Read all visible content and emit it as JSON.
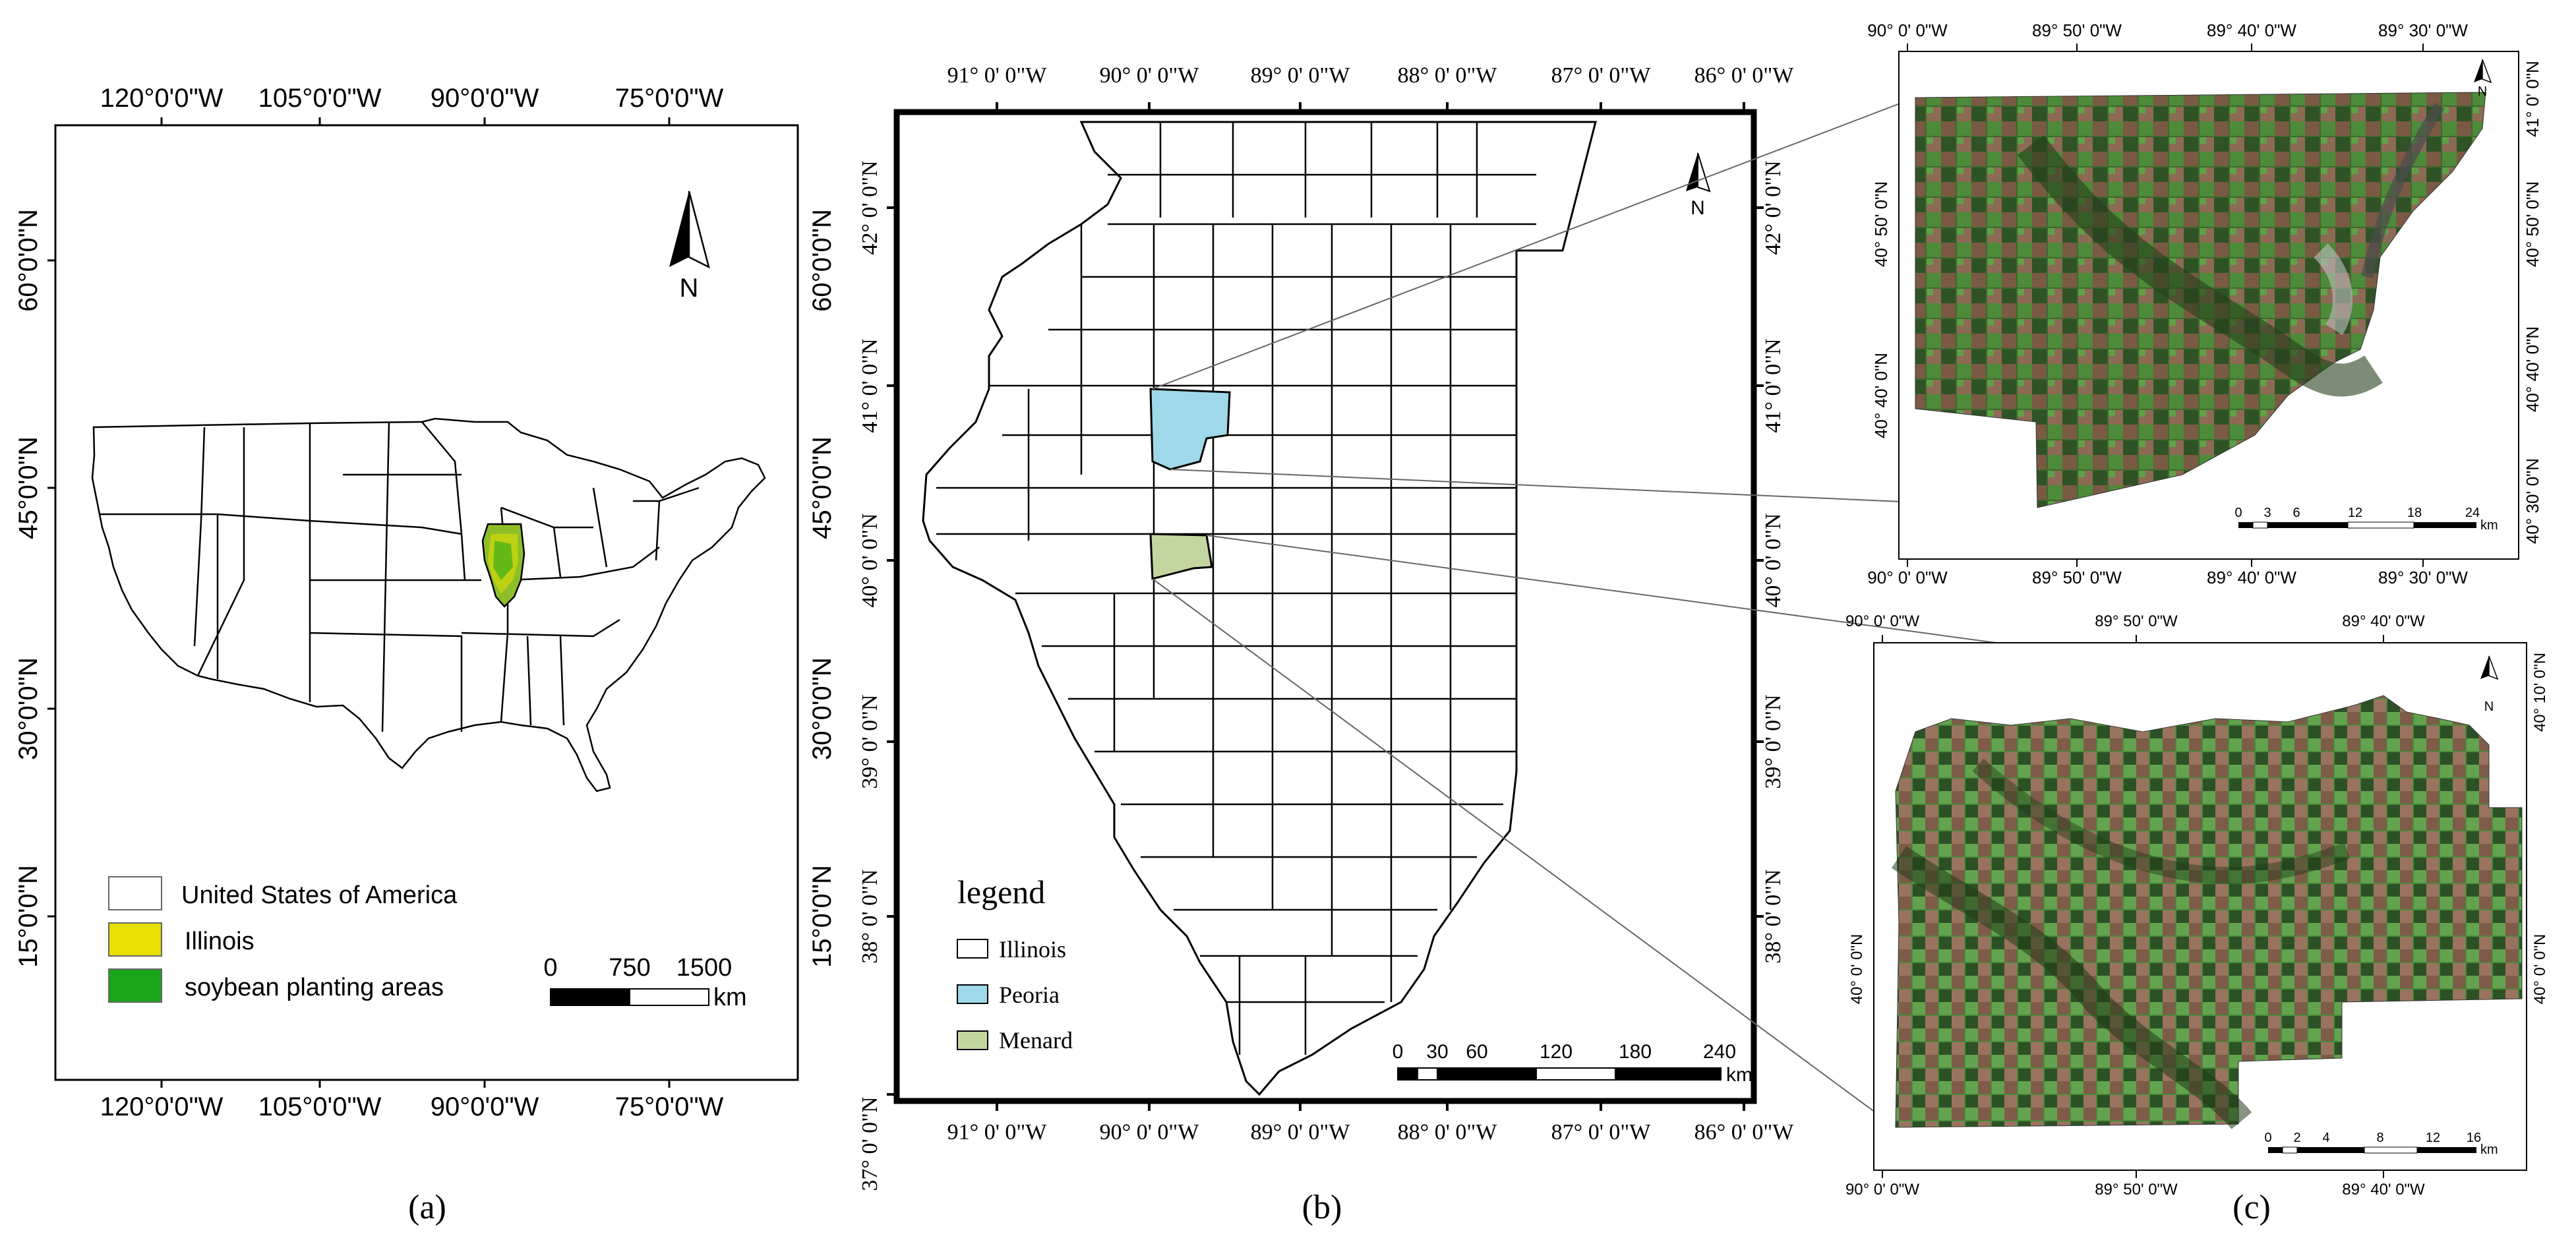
{
  "panel_a": {
    "caption": "(a)",
    "top_ticks": [
      "120°0'0\"W",
      "105°0'0\"W",
      "90°0'0\"W",
      "75°0'0\"W"
    ],
    "bottom_ticks": [
      "120°0'0\"W",
      "105°0'0\"W",
      "90°0'0\"W",
      "75°0'0\"W"
    ],
    "left_ticks": [
      "60°0'0\"N",
      "45°0'0\"N",
      "30°0'0\"N",
      "15°0'0\"N"
    ],
    "north_label": "N",
    "legend": [
      {
        "label": "United States of America",
        "color": "#ffffff"
      },
      {
        "label": "Illinois",
        "color": "#e8e000"
      },
      {
        "label": "soybean planting areas",
        "color": "#1aa61a"
      }
    ],
    "scale": {
      "labels": [
        "0",
        "750",
        "1500"
      ],
      "unit": "km"
    }
  },
  "panel_b": {
    "caption": "(b)",
    "top_ticks": [
      "91° 0' 0\"W",
      "90° 0' 0\"W",
      "89° 0' 0\"W",
      "88° 0' 0\"W",
      "87° 0' 0\"W",
      "86° 0' 0\"W"
    ],
    "bottom_ticks": [
      "91° 0' 0\"W",
      "90° 0' 0\"W",
      "89° 0' 0\"W",
      "88° 0' 0\"W",
      "87° 0' 0\"W",
      "86° 0' 0\"W"
    ],
    "left_ticks": [
      "42° 0' 0\"N",
      "41° 0' 0\"N",
      "40° 0' 0\"N",
      "39° 0' 0\"N",
      "38° 0' 0\"N",
      "37° 0' 0\"N"
    ],
    "right_ticks": [
      "42° 0' 0\"N",
      "41° 0' 0\"N",
      "40° 0' 0\"N",
      "39° 0' 0\"N",
      "38° 0' 0\"N"
    ],
    "left_outer_ticks": [
      "60°0'0\"N",
      "45°0'0\"N",
      "30°0'0\"N",
      "15°0'0\"N"
    ],
    "north_label": "N",
    "legend_title": "legend",
    "legend": [
      {
        "label": "Illinois",
        "color": "#ffffff"
      },
      {
        "label": "Peoria",
        "color": "#9fd8e8"
      },
      {
        "label": "Menard",
        "color": "#c4d6a0"
      }
    ],
    "scale": {
      "labels": [
        "0",
        "30",
        "60",
        "120",
        "180",
        "240"
      ],
      "unit": "km"
    }
  },
  "panel_c": {
    "caption": "(c)",
    "peoria": {
      "top_ticks": [
        "90° 0' 0\"W",
        "89° 50' 0\"W",
        "89° 40' 0\"W",
        "89° 30' 0\"W"
      ],
      "bottom_ticks": [
        "90° 0' 0\"W",
        "89° 50' 0\"W",
        "89° 40' 0\"W",
        "89° 30' 0\"W"
      ],
      "left_ticks": [
        "40° 50' 0\"N",
        "40° 40' 0\"N"
      ],
      "right_ticks": [
        "41° 0' 0\"N",
        "40° 50' 0\"N",
        "40° 40' 0\"N",
        "40° 30' 0\"N"
      ],
      "north_label": "N",
      "scale": {
        "labels": [
          "0",
          "3",
          "6",
          "12",
          "18",
          "24"
        ],
        "unit": "km"
      }
    },
    "menard": {
      "top_ticks": [
        "90° 0' 0\"W",
        "89° 50' 0\"W",
        "89° 40' 0\"W"
      ],
      "bottom_ticks": [
        "90° 0' 0\"W",
        "89° 50' 0\"W",
        "89° 40' 0\"W"
      ],
      "left_ticks": [
        "40° 0' 0\"N"
      ],
      "right_ticks": [
        "40° 10' 0\"N",
        "40° 0' 0\"N"
      ],
      "north_label": "N",
      "scale": {
        "labels": [
          "0",
          "2",
          "4",
          "8",
          "12",
          "16"
        ],
        "unit": "km"
      }
    }
  },
  "colors": {
    "illinois_fill": "#e8e000",
    "soybean_fill": "#1aa61a",
    "peoria_fill": "#9fd8e8",
    "menard_fill": "#c4d6a0",
    "field_dark": "#2e4a22",
    "field_green": "#3f7a33",
    "field_brown": "#8a6650"
  }
}
